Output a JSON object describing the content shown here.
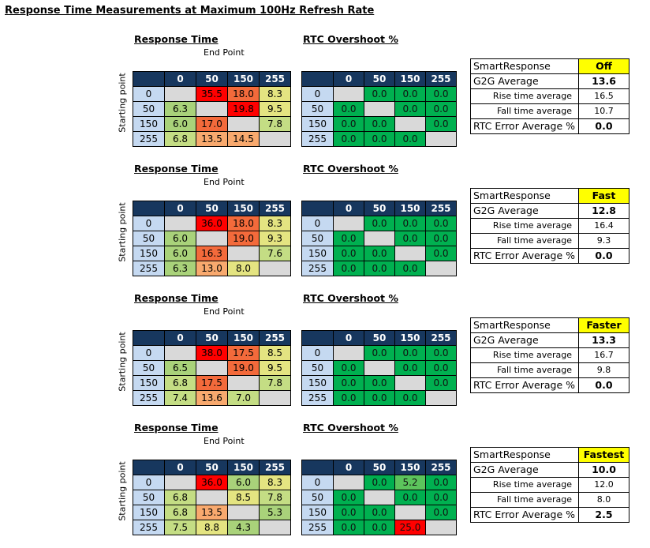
{
  "title": "Response Time Measurements at Maximum 100Hz Refresh Rate",
  "labels": {
    "response_time": "Response Time",
    "rtc_overshoot": "RTC Overshoot %",
    "end_point": "End Point",
    "starting_point": "Starting point",
    "smart_response": "SmartResponse",
    "g2g_average": "G2G Average",
    "rise_time_average": "Rise time average",
    "fall_time_average": "Fall time average",
    "rtc_error_average": "RTC Error Average %"
  },
  "levels": [
    "0",
    "50",
    "150",
    "255"
  ],
  "colors": {
    "header_bg": "#17375e",
    "row_header_bg": "#c5d9f1",
    "diagonal": "#d9d9d9",
    "mode_highlight": "#ffff00",
    "rtc_zero": "#00b050"
  },
  "chart_data": [
    {
      "type": "table",
      "mode": "Off",
      "g2g_average": "13.6",
      "rise_time_average": "16.5",
      "fall_time_average": "10.7",
      "rtc_error_average": "0.0",
      "response_time": [
        [
          null,
          "35.5",
          "18.0",
          "8.3"
        ],
        [
          "6.3",
          null,
          "19.8",
          "9.5"
        ],
        [
          "6.0",
          "17.0",
          null,
          "7.8"
        ],
        [
          "6.8",
          "13.5",
          "14.5",
          null
        ]
      ],
      "rtc_overshoot": [
        [
          null,
          "0.0",
          "0.0",
          "0.0"
        ],
        [
          "0.0",
          null,
          "0.0",
          "0.0"
        ],
        [
          "0.0",
          "0.0",
          null,
          "0.0"
        ],
        [
          "0.0",
          "0.0",
          "0.0",
          null
        ]
      ]
    },
    {
      "type": "table",
      "mode": "Fast",
      "g2g_average": "12.8",
      "rise_time_average": "16.4",
      "fall_time_average": "9.3",
      "rtc_error_average": "0.0",
      "response_time": [
        [
          null,
          "36.0",
          "18.0",
          "8.3"
        ],
        [
          "6.0",
          null,
          "19.0",
          "9.3"
        ],
        [
          "6.0",
          "16.3",
          null,
          "7.6"
        ],
        [
          "6.3",
          "13.0",
          "8.0",
          null
        ]
      ],
      "rtc_overshoot": [
        [
          null,
          "0.0",
          "0.0",
          "0.0"
        ],
        [
          "0.0",
          null,
          "0.0",
          "0.0"
        ],
        [
          "0.0",
          "0.0",
          null,
          "0.0"
        ],
        [
          "0.0",
          "0.0",
          "0.0",
          null
        ]
      ]
    },
    {
      "type": "table",
      "mode": "Faster",
      "g2g_average": "13.3",
      "rise_time_average": "16.7",
      "fall_time_average": "9.8",
      "rtc_error_average": "0.0",
      "response_time": [
        [
          null,
          "38.0",
          "17.5",
          "8.5"
        ],
        [
          "6.5",
          null,
          "19.0",
          "9.5"
        ],
        [
          "6.8",
          "17.5",
          null,
          "7.8"
        ],
        [
          "7.4",
          "13.6",
          "7.0",
          null
        ]
      ],
      "rtc_overshoot": [
        [
          null,
          "0.0",
          "0.0",
          "0.0"
        ],
        [
          "0.0",
          null,
          "0.0",
          "0.0"
        ],
        [
          "0.0",
          "0.0",
          null,
          "0.0"
        ],
        [
          "0.0",
          "0.0",
          "0.0",
          null
        ]
      ]
    },
    {
      "type": "table",
      "mode": "Fastest",
      "g2g_average": "10.0",
      "rise_time_average": "12.0",
      "fall_time_average": "8.0",
      "rtc_error_average": "2.5",
      "response_time": [
        [
          null,
          "36.0",
          "6.0",
          "8.3"
        ],
        [
          "6.8",
          null,
          "8.5",
          "7.8"
        ],
        [
          "6.8",
          "13.5",
          null,
          "5.3"
        ],
        [
          "7.5",
          "8.8",
          "4.3",
          null
        ]
      ],
      "rtc_overshoot": [
        [
          null,
          "0.0",
          "5.2",
          "0.0"
        ],
        [
          "0.0",
          null,
          "0.0",
          "0.0"
        ],
        [
          "0.0",
          "0.0",
          null,
          "0.0"
        ],
        [
          "0.0",
          "0.0",
          "25.0",
          null
        ]
      ]
    }
  ]
}
